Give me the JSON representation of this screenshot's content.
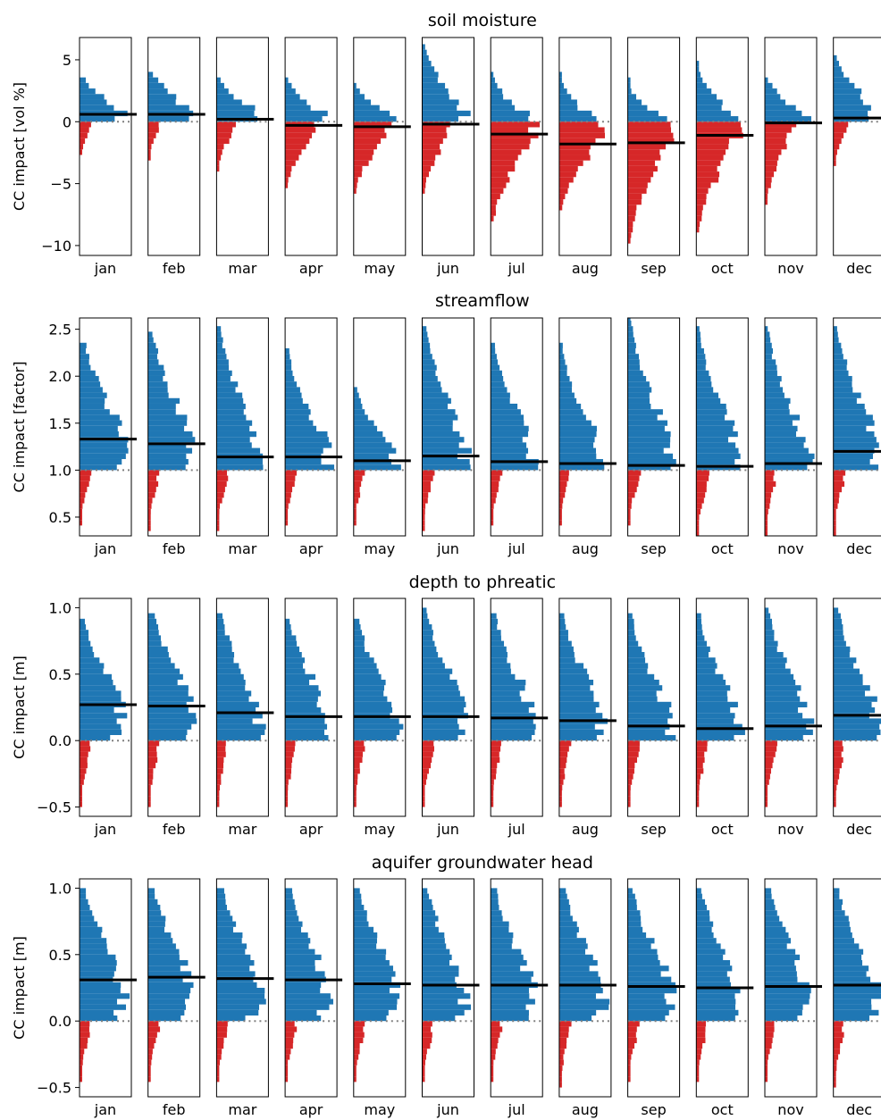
{
  "colors": {
    "positive": "#1f77b4",
    "negative": "#d62728",
    "median_line": "#000000",
    "zero_line": "#808080"
  },
  "months": [
    "jan",
    "feb",
    "mar",
    "apr",
    "may",
    "jun",
    "jul",
    "aug",
    "sep",
    "oct",
    "nov",
    "dec"
  ],
  "chart_data": [
    {
      "type": "bar",
      "orientation": "horizontal-histogram",
      "title": "soil moisture",
      "ylabel": "CC impact [vol %]",
      "ylim": [
        -10.8,
        6.8
      ],
      "yticks": [
        5,
        0,
        -5,
        -10
      ],
      "ytick_labels": [
        "5",
        "0",
        "−5",
        "−10"
      ],
      "reference": 0,
      "grid": false,
      "monthly": [
        {
          "month": "jan",
          "median": 0.6,
          "min": -2.3,
          "max": 3.5
        },
        {
          "month": "feb",
          "median": 0.6,
          "min": -3.0,
          "max": 4.0
        },
        {
          "month": "mar",
          "median": 0.2,
          "min": -4.0,
          "max": 3.5
        },
        {
          "month": "apr",
          "median": -0.3,
          "min": -5.0,
          "max": 3.5
        },
        {
          "month": "may",
          "median": -0.4,
          "min": -5.5,
          "max": 3.0
        },
        {
          "month": "jun",
          "median": -0.2,
          "min": -5.5,
          "max": 6.0
        },
        {
          "month": "jul",
          "median": -1.0,
          "min": -8.0,
          "max": 4.0
        },
        {
          "month": "aug",
          "median": -1.8,
          "min": -7.0,
          "max": 4.0
        },
        {
          "month": "sep",
          "median": -1.7,
          "min": -9.5,
          "max": 3.5
        },
        {
          "month": "oct",
          "median": -1.1,
          "min": -8.5,
          "max": 4.5
        },
        {
          "month": "nov",
          "median": -0.1,
          "min": -6.5,
          "max": 3.5
        },
        {
          "month": "dec",
          "median": 0.3,
          "min": -3.5,
          "max": 5.0
        }
      ]
    },
    {
      "type": "bar",
      "orientation": "horizontal-histogram",
      "title": "streamflow",
      "ylabel": "CC impact [factor]",
      "ylim": [
        0.3,
        2.62
      ],
      "yticks": [
        2.5,
        2.0,
        1.5,
        1.0,
        0.5
      ],
      "ytick_labels": [
        "2.5",
        "2.0",
        "1.5",
        "1.0",
        "0.5"
      ],
      "reference": 1.0,
      "grid": false,
      "monthly": [
        {
          "month": "jan",
          "median": 1.33,
          "min": 0.45,
          "max": 2.35
        },
        {
          "month": "feb",
          "median": 1.28,
          "min": 0.4,
          "max": 2.45
        },
        {
          "month": "mar",
          "median": 1.14,
          "min": 0.4,
          "max": 2.5
        },
        {
          "month": "apr",
          "median": 1.14,
          "min": 0.45,
          "max": 2.25
        },
        {
          "month": "may",
          "median": 1.1,
          "min": 0.45,
          "max": 1.85
        },
        {
          "month": "jun",
          "median": 1.15,
          "min": 0.4,
          "max": 2.5
        },
        {
          "month": "jul",
          "median": 1.09,
          "min": 0.45,
          "max": 2.35
        },
        {
          "month": "aug",
          "median": 1.07,
          "min": 0.45,
          "max": 2.3
        },
        {
          "month": "sep",
          "median": 1.05,
          "min": 0.45,
          "max": 2.6
        },
        {
          "month": "oct",
          "median": 1.04,
          "min": 0.35,
          "max": 2.5
        },
        {
          "month": "nov",
          "median": 1.07,
          "min": 0.35,
          "max": 2.5
        },
        {
          "month": "dec",
          "median": 1.2,
          "min": 0.35,
          "max": 2.5
        }
      ]
    },
    {
      "type": "bar",
      "orientation": "horizontal-histogram",
      "title": "depth to phreatic",
      "ylabel": "CC impact [m]",
      "ylim": [
        -0.57,
        1.07
      ],
      "yticks": [
        1.0,
        0.5,
        0.0,
        -0.5
      ],
      "ytick_labels": [
        "1.0",
        "0.5",
        "0.0",
        "−0.5"
      ],
      "reference": 0.0,
      "grid": false,
      "monthly": [
        {
          "month": "jan",
          "median": 0.27,
          "min": -0.5,
          "max": 0.88
        },
        {
          "month": "feb",
          "median": 0.26,
          "min": -0.5,
          "max": 0.95
        },
        {
          "month": "mar",
          "median": 0.21,
          "min": -0.5,
          "max": 0.95
        },
        {
          "month": "apr",
          "median": 0.18,
          "min": -0.5,
          "max": 0.9
        },
        {
          "month": "may",
          "median": 0.18,
          "min": -0.5,
          "max": 0.9
        },
        {
          "month": "jun",
          "median": 0.18,
          "min": -0.5,
          "max": 1.0
        },
        {
          "month": "jul",
          "median": 0.17,
          "min": -0.5,
          "max": 0.95
        },
        {
          "month": "aug",
          "median": 0.15,
          "min": -0.5,
          "max": 0.95
        },
        {
          "month": "sep",
          "median": 0.11,
          "min": -0.5,
          "max": 0.95
        },
        {
          "month": "oct",
          "median": 0.09,
          "min": -0.5,
          "max": 0.95
        },
        {
          "month": "nov",
          "median": 0.11,
          "min": -0.5,
          "max": 1.0
        },
        {
          "month": "dec",
          "median": 0.19,
          "min": -0.5,
          "max": 1.0
        }
      ]
    },
    {
      "type": "bar",
      "orientation": "horizontal-histogram",
      "title": "aquifer groundwater head",
      "ylabel": "CC impact [m]",
      "ylim": [
        -0.57,
        1.07
      ],
      "yticks": [
        1.0,
        0.5,
        0.0,
        -0.5
      ],
      "ytick_labels": [
        "1.0",
        "0.5",
        "0.0",
        "−0.5"
      ],
      "reference": 0.0,
      "grid": false,
      "monthly": [
        {
          "month": "jan",
          "median": 0.31,
          "min": -0.45,
          "max": 0.97
        },
        {
          "month": "feb",
          "median": 0.33,
          "min": -0.45,
          "max": 0.97
        },
        {
          "month": "mar",
          "median": 0.32,
          "min": -0.45,
          "max": 0.97
        },
        {
          "month": "apr",
          "median": 0.31,
          "min": -0.45,
          "max": 0.97
        },
        {
          "month": "may",
          "median": 0.28,
          "min": -0.45,
          "max": 0.97
        },
        {
          "month": "jun",
          "median": 0.27,
          "min": -0.45,
          "max": 0.97
        },
        {
          "month": "jul",
          "median": 0.27,
          "min": -0.45,
          "max": 0.97
        },
        {
          "month": "aug",
          "median": 0.27,
          "min": -0.5,
          "max": 0.97
        },
        {
          "month": "sep",
          "median": 0.26,
          "min": -0.45,
          "max": 0.97
        },
        {
          "month": "oct",
          "median": 0.25,
          "min": -0.45,
          "max": 0.97
        },
        {
          "month": "nov",
          "median": 0.26,
          "min": -0.45,
          "max": 0.97
        },
        {
          "month": "dec",
          "median": 0.27,
          "min": -0.5,
          "max": 0.97
        }
      ]
    }
  ]
}
